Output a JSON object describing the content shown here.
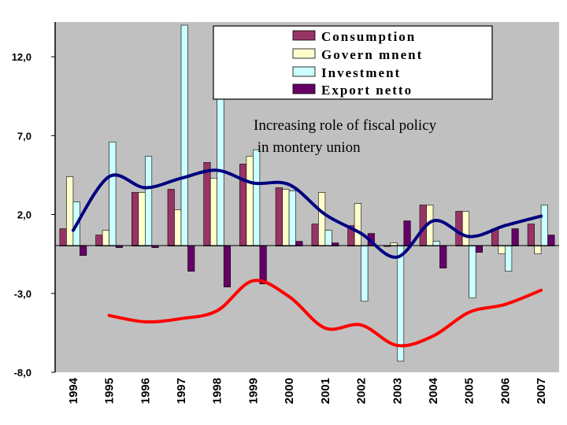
{
  "chart_data": {
    "type": "bar",
    "categories": [
      "1994",
      "1995",
      "1996",
      "1997",
      "1998",
      "1999",
      "2000",
      "2001",
      "2002",
      "2003",
      "2004",
      "2005",
      "2006",
      "2007"
    ],
    "series": [
      {
        "name": "Consumption",
        "color": "#993366",
        "values": [
          1.1,
          0.7,
          3.4,
          3.6,
          5.3,
          5.2,
          3.7,
          1.4,
          1.3,
          0.0,
          2.6,
          2.2,
          1.1,
          1.4
        ]
      },
      {
        "name": "Govern mnent",
        "color": "#FFFFCC",
        "values": [
          4.4,
          1.0,
          3.4,
          2.3,
          4.3,
          5.7,
          3.6,
          3.4,
          2.7,
          0.2,
          2.6,
          2.2,
          -0.5,
          -0.5
        ]
      },
      {
        "name": "Investment",
        "color": "#CCFFFF",
        "values": [
          2.8,
          6.6,
          5.7,
          14.0,
          9.5,
          6.1,
          3.5,
          1.0,
          -3.5,
          -7.3,
          0.3,
          -3.3,
          -1.6,
          2.6
        ]
      },
      {
        "name": "Export netto",
        "color": "#660066",
        "values": [
          -0.6,
          -0.1,
          -0.1,
          -1.6,
          -2.6,
          -2.4,
          0.3,
          0.2,
          0.8,
          1.6,
          -1.4,
          -0.4,
          1.1,
          0.7
        ]
      }
    ],
    "lines": [
      {
        "color": "#000080",
        "x": [
          "1994",
          "1995",
          "1996",
          "1997",
          "1998",
          "1999",
          "2000",
          "2001",
          "2002",
          "2003",
          "2004",
          "2005",
          "2006",
          "2007"
        ],
        "values": [
          1.0,
          4.4,
          3.7,
          4.3,
          4.8,
          4.0,
          3.9,
          2.0,
          0.8,
          -0.7,
          1.6,
          0.6,
          1.3,
          1.9
        ]
      },
      {
        "color": "#FF0000",
        "x": [
          "1995",
          "1996",
          "1997",
          "1998",
          "1999",
          "2000",
          "2001",
          "2002",
          "2003",
          "2004",
          "2005",
          "2006",
          "2007"
        ],
        "values": [
          -4.4,
          -4.8,
          -4.6,
          -4.1,
          -2.2,
          -3.2,
          -5.2,
          -5.0,
          -6.3,
          -5.7,
          -4.2,
          -3.7,
          -2.8
        ]
      }
    ],
    "y_ticks": [
      "12,0",
      "7,0",
      "2,0",
      "-3,0",
      "-8,0"
    ],
    "ylim": [
      -8.0,
      14.2
    ],
    "grid": false,
    "legend_position": "top-right",
    "annotation_lines": [
      "Increasing role of fiscal policy",
      " in montery union"
    ]
  }
}
